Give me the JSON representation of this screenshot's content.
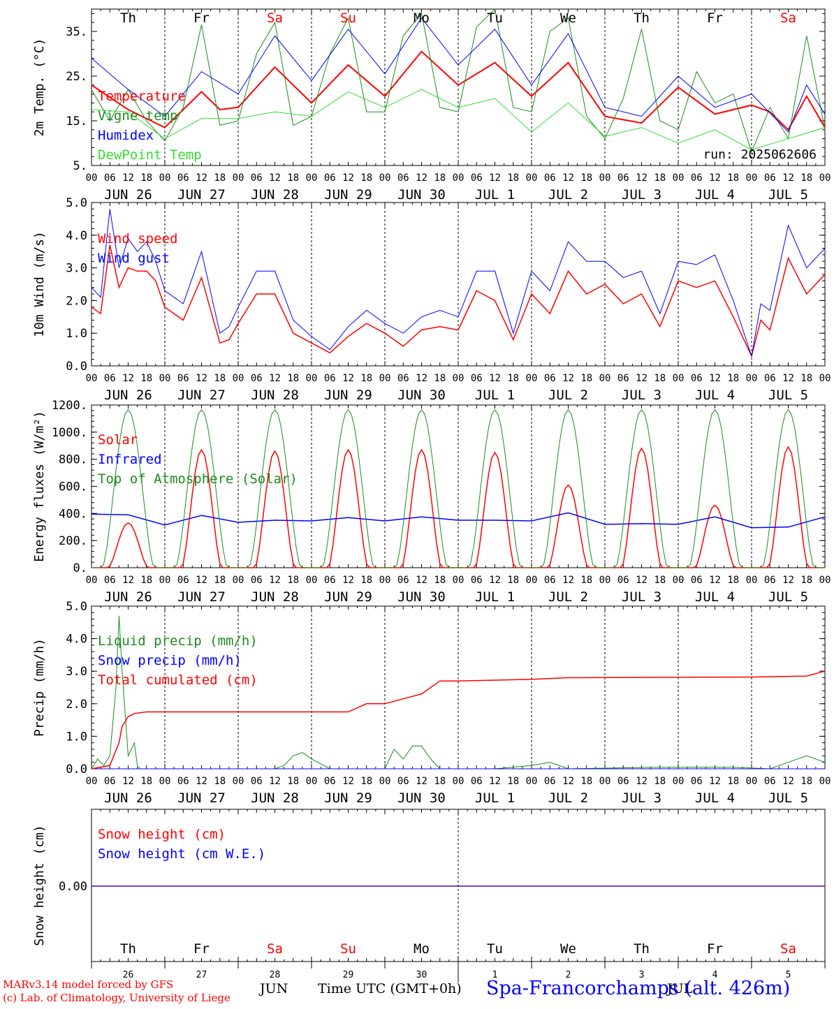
{
  "chart_data": [
    {
      "type": "line",
      "ylabel": "2m Temp. (°C)",
      "ylim": [
        5,
        40
      ],
      "yticks": [
        5,
        15,
        25,
        35
      ],
      "ytick_labels": [
        "5.",
        "15.",
        "25.",
        "35."
      ],
      "day_labels": [
        {
          "label": "Th",
          "color": "#000000"
        },
        {
          "label": "Fr",
          "color": "#000000"
        },
        {
          "label": "Sa",
          "color": "#ff0000"
        },
        {
          "label": "Su",
          "color": "#ff0000"
        },
        {
          "label": "Mo",
          "color": "#000000"
        },
        {
          "label": "Tu",
          "color": "#000000"
        },
        {
          "label": "We",
          "color": "#000000"
        },
        {
          "label": "Th",
          "color": "#000000"
        },
        {
          "label": "Fr",
          "color": "#000000"
        },
        {
          "label": "Sa",
          "color": "#ff0000"
        }
      ],
      "annotation": "run: 2025062606",
      "series": [
        {
          "name": "Temperature",
          "color": "#ff0000",
          "width": 2,
          "x": [
            0,
            12,
            24,
            36,
            42,
            48,
            60,
            72,
            84,
            96,
            108,
            120,
            132,
            144,
            156,
            168,
            180,
            192,
            204,
            216,
            222,
            228,
            234,
            240
          ],
          "values": [
            23,
            17.5,
            13.5,
            21.5,
            17.5,
            18,
            27,
            19,
            27.5,
            20.5,
            30.5,
            23,
            28,
            20.5,
            28,
            16,
            14.5,
            22.5,
            16.5,
            18.5,
            17,
            13,
            20.5,
            13.5
          ]
        },
        {
          "name": "Vigne temp",
          "color": "#1a8c1a",
          "width": 1,
          "x": [
            0,
            6,
            12,
            18,
            24,
            30,
            36,
            42,
            48,
            54,
            60,
            66,
            72,
            78,
            84,
            90,
            96,
            102,
            108,
            114,
            120,
            126,
            132,
            138,
            144,
            150,
            156,
            162,
            168,
            174,
            180,
            186,
            192,
            198,
            204,
            210,
            216,
            222,
            228,
            234,
            240
          ],
          "values": [
            22,
            15,
            22,
            15,
            10.5,
            18,
            36.5,
            14,
            15,
            30,
            37,
            14,
            16,
            30,
            38,
            17,
            17,
            34,
            39,
            18,
            17,
            36,
            40,
            18,
            17,
            35,
            38,
            16,
            11,
            20,
            35.5,
            15,
            13,
            26,
            19,
            21,
            8,
            18,
            11,
            34,
            13
          ]
        },
        {
          "name": "Humidex",
          "color": "#0000ff",
          "width": 1,
          "x": [
            0,
            12,
            24,
            36,
            48,
            60,
            72,
            84,
            96,
            108,
            120,
            132,
            144,
            156,
            168,
            180,
            192,
            204,
            216,
            228,
            234,
            240
          ],
          "values": [
            29,
            22,
            16,
            26,
            21,
            34,
            24,
            35.5,
            25.5,
            38,
            27.5,
            35.5,
            23,
            34.5,
            18,
            16,
            25,
            18,
            21,
            12.5,
            23,
            16.5
          ]
        },
        {
          "name": "DewPoint Temp",
          "color": "#33dd33",
          "width": 1,
          "x": [
            0,
            12,
            24,
            36,
            48,
            60,
            72,
            84,
            96,
            108,
            120,
            132,
            144,
            156,
            168,
            180,
            192,
            204,
            216,
            228,
            240
          ],
          "values": [
            17.5,
            17,
            11,
            15.5,
            15.5,
            17,
            16,
            21.5,
            18,
            22,
            18,
            20,
            12.5,
            19,
            11.5,
            13.5,
            10,
            13,
            8.5,
            11,
            13.5
          ]
        }
      ]
    },
    {
      "type": "line",
      "ylabel": "10m Wind (m/s)",
      "ylim": [
        0,
        5
      ],
      "yticks": [
        0,
        1,
        2,
        3,
        4,
        5
      ],
      "ytick_labels": [
        "0.0",
        "1.0",
        "2.0",
        "3.0",
        "4.0",
        "5.0"
      ],
      "series": [
        {
          "name": "Wind speed",
          "color": "#ff0000",
          "width": 1.5,
          "x": [
            0,
            3,
            6,
            9,
            12,
            15,
            18,
            21,
            24,
            30,
            36,
            42,
            45,
            48,
            54,
            60,
            66,
            72,
            78,
            84,
            90,
            96,
            102,
            108,
            114,
            120,
            126,
            132,
            138,
            144,
            150,
            156,
            162,
            168,
            174,
            180,
            186,
            192,
            198,
            204,
            210,
            216,
            219,
            222,
            228,
            234,
            240
          ],
          "values": [
            1.8,
            1.6,
            3.7,
            2.4,
            3.0,
            2.9,
            2.9,
            2.6,
            1.8,
            1.4,
            2.7,
            0.7,
            0.8,
            1.3,
            2.2,
            2.2,
            1.0,
            0.7,
            0.4,
            0.9,
            1.3,
            1.0,
            0.6,
            1.1,
            1.2,
            1.1,
            2.3,
            2.0,
            0.8,
            2.2,
            1.6,
            2.9,
            2.2,
            2.5,
            1.9,
            2.2,
            1.2,
            2.6,
            2.4,
            2.6,
            1.5,
            0.3,
            1.4,
            1.1,
            3.3,
            2.2,
            2.8
          ]
        },
        {
          "name": "Wind gust",
          "color": "#0000ff",
          "width": 1,
          "x": [
            0,
            3,
            6,
            9,
            12,
            15,
            18,
            21,
            24,
            30,
            36,
            42,
            45,
            48,
            54,
            60,
            66,
            72,
            78,
            84,
            90,
            96,
            102,
            108,
            114,
            120,
            126,
            132,
            138,
            144,
            150,
            156,
            162,
            168,
            174,
            180,
            186,
            192,
            198,
            204,
            210,
            216,
            219,
            222,
            228,
            234,
            240
          ],
          "values": [
            2.4,
            2.1,
            4.8,
            3.0,
            3.9,
            3.5,
            3.8,
            3.2,
            2.3,
            1.9,
            3.5,
            1.0,
            1.2,
            1.8,
            2.9,
            2.9,
            1.4,
            0.9,
            0.5,
            1.2,
            1.7,
            1.3,
            1.0,
            1.5,
            1.7,
            1.5,
            2.9,
            2.9,
            1.0,
            2.9,
            2.3,
            3.8,
            3.2,
            3.2,
            2.7,
            2.9,
            1.6,
            3.2,
            3.1,
            3.4,
            2.0,
            0.3,
            1.9,
            1.7,
            4.3,
            3.0,
            3.6
          ]
        }
      ]
    },
    {
      "type": "line",
      "ylabel": "Energy fluxes (W/m²)",
      "ylim": [
        0,
        1200
      ],
      "yticks": [
        0,
        200,
        400,
        600,
        800,
        1000,
        1200
      ],
      "ytick_labels": [
        "0.",
        "200.",
        "400.",
        "600.",
        "800.",
        "1000.",
        "1200."
      ],
      "series": [
        {
          "name": "Solar",
          "color": "#ff0000",
          "width": 1.5,
          "daily_peaks": [
            330,
            870,
            860,
            870,
            870,
            850,
            610,
            880,
            460,
            890
          ]
        },
        {
          "name": "Infrared",
          "color": "#0000ff",
          "width": 1.5,
          "x": [
            0,
            12,
            24,
            36,
            48,
            60,
            72,
            84,
            96,
            108,
            120,
            132,
            144,
            156,
            168,
            180,
            192,
            204,
            216,
            228,
            240
          ],
          "values": [
            395,
            390,
            315,
            385,
            335,
            350,
            345,
            370,
            345,
            375,
            350,
            350,
            345,
            405,
            320,
            325,
            320,
            375,
            295,
            300,
            375
          ]
        },
        {
          "name": "Top of Atmosphere (Solar)",
          "color": "#1a8c1a",
          "width": 1,
          "daily_peak": 1165
        }
      ]
    },
    {
      "type": "line",
      "ylabel": "Precip (mm/h)",
      "ylim": [
        0,
        5
      ],
      "yticks": [
        0,
        1,
        2,
        3,
        4,
        5
      ],
      "ytick_labels": [
        "0.0",
        "1.0",
        "2.0",
        "3.0",
        "4.0",
        "5.0"
      ],
      "series": [
        {
          "name": "Liquid precip (mm/h)",
          "color": "#1a8c1a",
          "width": 1,
          "x": [
            0,
            2,
            4,
            6,
            8,
            9,
            10,
            12,
            14,
            15,
            16,
            18,
            60,
            63,
            66,
            69,
            72,
            78,
            84,
            90,
            96,
            99,
            102,
            105,
            108,
            111,
            114,
            132,
            144,
            150,
            156,
            186,
            210,
            222,
            228,
            234,
            240
          ],
          "values": [
            0,
            0.3,
            0.1,
            0.4,
            2.5,
            4.7,
            3,
            0.4,
            0.8,
            0.1,
            0,
            0,
            0,
            0.1,
            0.4,
            0.5,
            0.3,
            0,
            0,
            0,
            0,
            0.6,
            0.3,
            0.7,
            0.7,
            0.3,
            0,
            0,
            0.1,
            0.2,
            0,
            0.05,
            0.05,
            0,
            0.2,
            0.4,
            0.2
          ]
        },
        {
          "name": "Snow precip (mm/h)",
          "color": "#0000ff",
          "width": 1,
          "x": [
            0,
            240
          ],
          "values": [
            0,
            0
          ]
        },
        {
          "name": "Total cumulated (cm)",
          "color": "#ff0000",
          "width": 1.5,
          "x": [
            0,
            6,
            9,
            10,
            12,
            14,
            18,
            24,
            84,
            90,
            96,
            108,
            114,
            120,
            144,
            156,
            216,
            234,
            240
          ],
          "values": [
            0,
            0.1,
            0.8,
            1.3,
            1.6,
            1.7,
            1.75,
            1.75,
            1.75,
            2.0,
            2.0,
            2.3,
            2.7,
            2.7,
            2.75,
            2.8,
            2.82,
            2.85,
            3.0
          ]
        }
      ]
    },
    {
      "type": "line",
      "ylabel": "Snow height (cm)",
      "yticks": [
        0
      ],
      "ytick_labels": [
        "0.00"
      ],
      "series": [
        {
          "name": "Snow height (cm)",
          "color": "#ff0000",
          "width": 1.5,
          "x": [
            0,
            240
          ],
          "values": [
            0,
            0
          ]
        },
        {
          "name": "Snow height (cm W.E.)",
          "color": "#0000ff",
          "width": 1,
          "x": [
            0,
            240
          ],
          "values": [
            0,
            0
          ]
        }
      ]
    }
  ],
  "hour_tick_labels": [
    "00",
    "06",
    "12",
    "18"
  ],
  "final_hour_label": "00",
  "date_labels": [
    "JUN 26",
    "JUN 27",
    "JUN 28",
    "JUN 29",
    "JUN 30",
    "JUL  1",
    "JUL  2",
    "JUL  3",
    "JUL  4",
    "JUL  5"
  ],
  "bottom_axis": {
    "day_numbers": [
      "26",
      "27",
      "28",
      "29",
      "30",
      "1",
      "2",
      "3",
      "4",
      "5"
    ],
    "month_left": "JUN",
    "month_right": "JUL",
    "xlabel": "Time UTC (GMT+0h)"
  },
  "footer": {
    "credit_line1": "MARv3.14 model forced by GFS",
    "credit_line2": "(c) Lab. of Climatology, University of Liege",
    "station": "Spa-Francorchamps (alt. 426m)"
  },
  "colors": {
    "red": "#ff0000",
    "blue": "#0000ff",
    "green": "#1a8c1a",
    "lightgreen": "#33dd33",
    "black": "#000000"
  }
}
